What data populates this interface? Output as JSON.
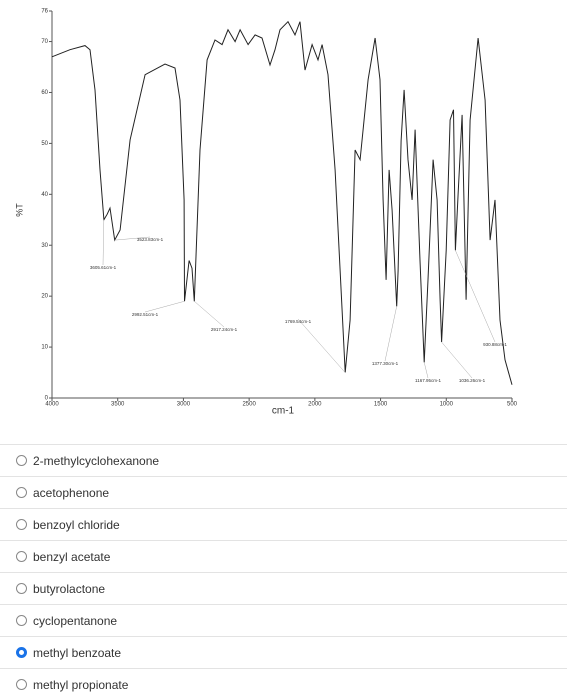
{
  "chart_data": {
    "type": "line",
    "x_label": "cm-1",
    "y_label": "%T",
    "xlim": [
      4000,
      500
    ],
    "ylim": [
      0,
      76
    ],
    "xticks": [
      4000,
      3500,
      3000,
      2500,
      2000,
      1500,
      1000,
      500
    ],
    "yticks": [
      0,
      10,
      20,
      30,
      40,
      50,
      60,
      70,
      76
    ],
    "color": "#222",
    "x": [
      4000,
      3863,
      3749,
      3711,
      3673,
      3635,
      3605,
      3580,
      3559,
      3523,
      3482,
      3406,
      3292,
      3140,
      3064,
      3026,
      2995,
      2992,
      2957,
      2935,
      2917,
      2874,
      2820,
      2760,
      2706,
      2661,
      2607,
      2569,
      2508,
      2455,
      2402,
      2341,
      2303,
      2265,
      2204,
      2151,
      2113,
      2075,
      2021,
      1976,
      1945,
      1900,
      1846,
      1769,
      1732,
      1694,
      1656,
      1595,
      1542,
      1504,
      1481,
      1458,
      1435,
      1412,
      1377,
      1367,
      1344,
      1321,
      1291,
      1260,
      1237,
      1200,
      1168,
      1139,
      1100,
      1070,
      1047,
      1036,
      1001,
      971,
      945,
      931,
      910,
      880,
      849,
      819,
      758,
      705,
      667,
      629,
      591,
      553,
      500
    ],
    "y": [
      67,
      68.4,
      69.2,
      68.4,
      60.5,
      44.8,
      35,
      36.1,
      37.3,
      31,
      33,
      50.7,
      63.5,
      65.6,
      64.8,
      58.5,
      38.9,
      19,
      27,
      25.5,
      19,
      48.7,
      66.4,
      70.3,
      69.4,
      72.3,
      70,
      72.3,
      69.4,
      71.3,
      70.7,
      65.4,
      68.4,
      72.3,
      73.9,
      71.3,
      73.9,
      64.4,
      69.4,
      66.4,
      69.4,
      63.5,
      44.8,
      5,
      15.3,
      48.7,
      46.8,
      62.5,
      70.7,
      62.5,
      38.9,
      23.2,
      44.8,
      36.9,
      18,
      25,
      50.5,
      60.5,
      46.8,
      38.9,
      52.7,
      27,
      7,
      23.2,
      46.8,
      38.9,
      19.3,
      11,
      29,
      54.6,
      56.6,
      29,
      40,
      55.6,
      19.3,
      54.6,
      70.7,
      58.5,
      31,
      38.9,
      15.3,
      7.5,
      2.6
    ],
    "annotations": [
      {
        "text": "3605.61cm-1",
        "x": 3605.61,
        "y": 35
      },
      {
        "text": "3523.83cm-1",
        "x": 3523.83,
        "y": 31
      },
      {
        "text": "2992.51cm-1",
        "x": 2992.51,
        "y": 19
      },
      {
        "text": "2917.24cm-1",
        "x": 2917.24,
        "y": 19
      },
      {
        "text": "1769.54cm-1",
        "x": 1769.54,
        "y": 5
      },
      {
        "text": "1377.30cm-1",
        "x": 1377.3,
        "y": 18
      },
      {
        "text": "1167.95cm-1",
        "x": 1167.95,
        "y": 7
      },
      {
        "text": "1036.26cm-1",
        "x": 1036.26,
        "y": 11
      },
      {
        "text": "930.88cm-1",
        "x": 930.88,
        "y": 29
      }
    ]
  },
  "options": [
    "2-methylcyclohexanone",
    "acetophenone",
    "benzoyl chloride",
    "benzyl acetate",
    "butyrolactone",
    "cyclopentanone",
    "methyl benzoate",
    "methyl propionate"
  ],
  "selected": 6
}
